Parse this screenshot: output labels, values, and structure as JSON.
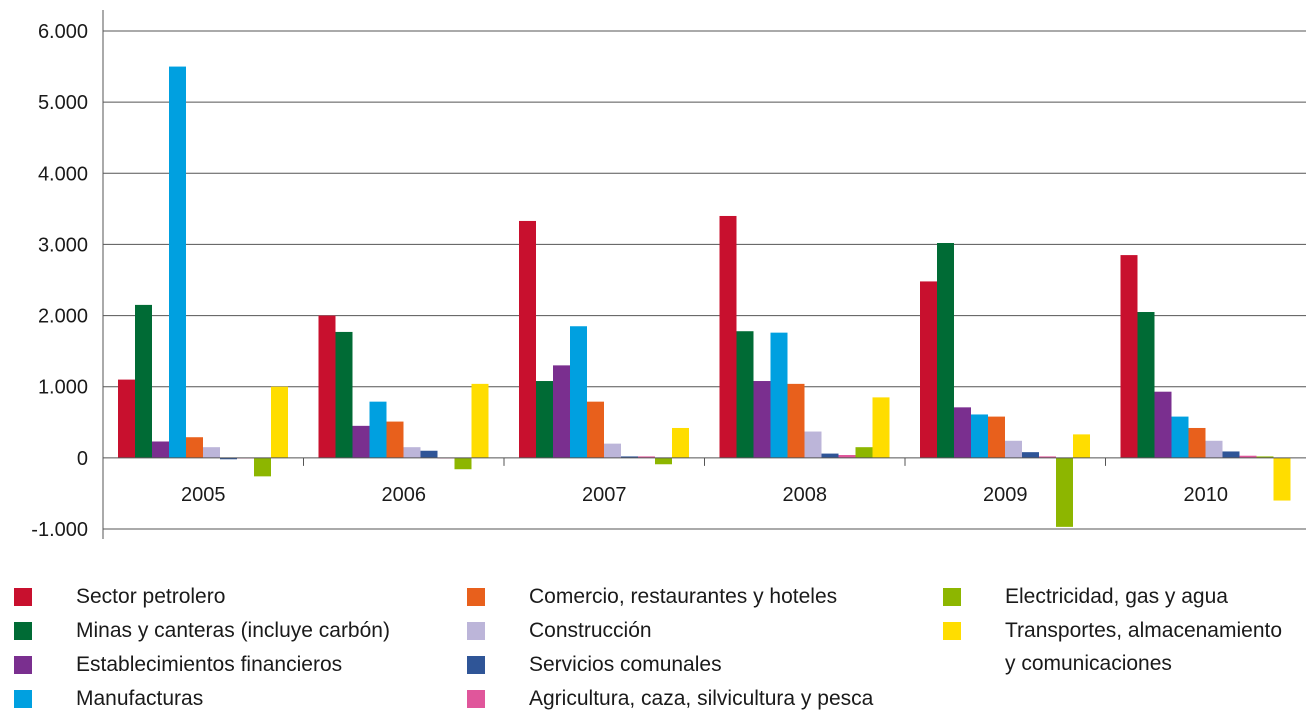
{
  "chart_data": {
    "type": "bar",
    "title": "",
    "xlabel": "",
    "ylabel": "",
    "categories": [
      "2005",
      "2006",
      "2007",
      "2008",
      "2009",
      "2010"
    ],
    "ylim": [
      -1000,
      6000
    ],
    "yticks": [
      -1000,
      0,
      1000,
      2000,
      3000,
      4000,
      5000,
      6000
    ],
    "ytick_labels": [
      "-1.000",
      "0",
      "1.000",
      "2.000",
      "3.000",
      "4.000",
      "5.000",
      "6.000"
    ],
    "grid": true,
    "legend_position": "bottom",
    "series": [
      {
        "name": "Sector petrolero",
        "color": "#c8102e",
        "values": [
          1100,
          2000,
          3330,
          3400,
          2480,
          2850
        ]
      },
      {
        "name": "Minas y canteras (incluye carbón)",
        "color": "#006b35",
        "values": [
          2150,
          1770,
          1080,
          1780,
          3020,
          2050
        ]
      },
      {
        "name": "Establecimientos financieros",
        "color": "#7a2f8f",
        "values": [
          230,
          450,
          1300,
          1080,
          710,
          930
        ]
      },
      {
        "name": "Manufacturas",
        "color": "#00a0e0",
        "values": [
          5500,
          790,
          1850,
          1760,
          610,
          580
        ]
      },
      {
        "name": "Comercio, restaurantes y hoteles",
        "color": "#e8601c",
        "values": [
          290,
          510,
          790,
          1040,
          580,
          420
        ]
      },
      {
        "name": "Construcción",
        "color": "#bcb5d9",
        "values": [
          150,
          150,
          200,
          370,
          240,
          240
        ]
      },
      {
        "name": "Servicios comunales",
        "color": "#2f5597",
        "values": [
          -20,
          100,
          20,
          60,
          80,
          90
        ]
      },
      {
        "name": "Agricultura, caza, silvicultura y pesca",
        "color": "#e0569b",
        "values": [
          0,
          0,
          20,
          40,
          20,
          30
        ]
      },
      {
        "name": "Electricidad, gas y agua",
        "color": "#8db600",
        "values": [
          -260,
          -160,
          -90,
          150,
          -970,
          20
        ]
      },
      {
        "name": "Transportes, almacenamiento y comunicaciones",
        "color": "#ffdd00",
        "values": [
          1000,
          1040,
          420,
          850,
          330,
          -600
        ]
      }
    ]
  },
  "legend_rows": [
    [
      "Sector petrolero"
    ],
    [
      "Minas y canteras (incluye carbón)"
    ],
    [
      "Establecimientos financieros"
    ],
    [
      "Manufacturas"
    ],
    [
      "Comercio, restaurantes y hoteles"
    ],
    [
      "Construcción"
    ],
    [
      "Servicios comunales"
    ],
    [
      "Agricultura, caza, silvicultura y pesca"
    ],
    [
      "Electricidad, gas y agua"
    ],
    [
      "Transportes, almacenamiento",
      "y comunicaciones"
    ]
  ]
}
